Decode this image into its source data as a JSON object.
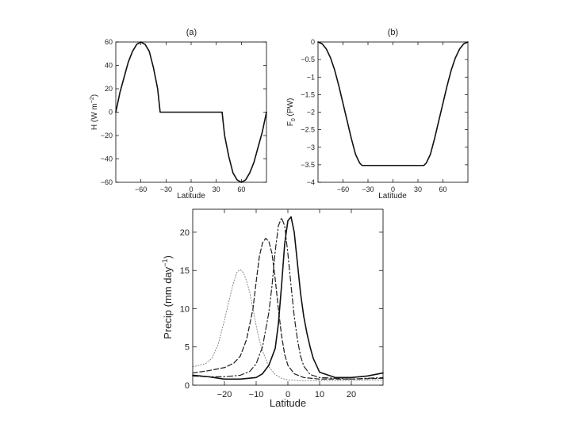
{
  "chart_data": [
    {
      "type": "line",
      "title": "(a)",
      "xlabel": "Latitude",
      "ylabel": "H (W m",
      "ylabel_sup": "−2",
      "ylabel_close": ")",
      "xlim": [
        -90,
        90
      ],
      "ylim": [
        -60,
        60
      ],
      "xticks": [
        -60,
        -30,
        0,
        30,
        60
      ],
      "yticks": [
        -60,
        -40,
        -20,
        0,
        20,
        40,
        60
      ],
      "grid": false,
      "series": [
        {
          "style": "solid",
          "x": [
            -90,
            -85,
            -80,
            -75,
            -70,
            -65,
            -60,
            -55,
            -50,
            -45,
            -40,
            -37,
            -30,
            -20,
            -10,
            0,
            10,
            20,
            30,
            37,
            40,
            45,
            50,
            55,
            60,
            65,
            70,
            75,
            80,
            85,
            90
          ],
          "y": [
            0,
            17,
            30,
            43,
            52,
            58,
            60,
            58,
            52,
            38,
            20,
            0,
            0,
            0,
            0,
            0,
            0,
            0,
            0,
            0,
            -20,
            -38,
            -52,
            -58,
            -60,
            -58,
            -52,
            -43,
            -30,
            -17,
            0
          ]
        }
      ]
    },
    {
      "type": "line",
      "title": "(b)",
      "xlabel": "Latitude",
      "ylabel": "F",
      "ylabel_sub": "0",
      "ylabel_rest": " (PW)",
      "xlim": [
        -90,
        90
      ],
      "ylim": [
        -4,
        0
      ],
      "xticks": [
        -60,
        -30,
        0,
        30,
        60
      ],
      "yticks": [
        0,
        -0.5,
        -1,
        -1.5,
        -2,
        -2.5,
        -3,
        -3.5,
        -4
      ],
      "grid": false,
      "series": [
        {
          "style": "solid",
          "x": [
            -90,
            -85,
            -80,
            -75,
            -70,
            -65,
            -60,
            -55,
            -50,
            -45,
            -40,
            -37,
            -30,
            -20,
            -10,
            0,
            10,
            20,
            30,
            37,
            40,
            45,
            50,
            55,
            60,
            65,
            70,
            75,
            80,
            85,
            90
          ],
          "y": [
            0,
            -0.05,
            -0.2,
            -0.45,
            -0.8,
            -1.25,
            -1.75,
            -2.25,
            -2.75,
            -3.2,
            -3.45,
            -3.52,
            -3.52,
            -3.52,
            -3.52,
            -3.52,
            -3.52,
            -3.52,
            -3.52,
            -3.52,
            -3.45,
            -3.2,
            -2.75,
            -2.25,
            -1.75,
            -1.25,
            -0.8,
            -0.45,
            -0.2,
            -0.05,
            0
          ]
        }
      ]
    },
    {
      "type": "line",
      "title": "",
      "xlabel": "Latitude",
      "ylabel": "Precip (mm day",
      "ylabel_sup": "−1",
      "ylabel_close": ")",
      "xlim": [
        -30,
        30
      ],
      "ylim": [
        0,
        23
      ],
      "xticks": [
        -20,
        -10,
        0,
        10,
        20
      ],
      "yticks": [
        0,
        5,
        10,
        15,
        20
      ],
      "grid": false,
      "series": [
        {
          "style": "dotted",
          "x": [
            -30,
            -26,
            -24,
            -22,
            -20,
            -18,
            -17,
            -16,
            -15,
            -14,
            -13,
            -12,
            -11,
            -10,
            -9,
            -8,
            -6,
            -4,
            -2,
            0,
            4,
            10,
            20,
            30
          ],
          "y": [
            2.4,
            2.8,
            3.5,
            5.3,
            8.5,
            12.0,
            13.6,
            14.8,
            15.1,
            14.7,
            13.6,
            12.1,
            10.0,
            7.8,
            5.9,
            4.5,
            2.4,
            1.4,
            0.9,
            0.7,
            0.6,
            0.6,
            0.6,
            0.7
          ]
        },
        {
          "style": "dashed",
          "x": [
            -30,
            -25,
            -20,
            -17,
            -15,
            -13,
            -11,
            -10,
            -9,
            -8,
            -7,
            -6,
            -5,
            -4,
            -3,
            -2,
            -1,
            0,
            2,
            5,
            10,
            20,
            30
          ],
          "y": [
            1.6,
            1.9,
            2.3,
            2.9,
            3.8,
            6.0,
            10.0,
            13.5,
            16.8,
            18.6,
            19.2,
            18.8,
            17.2,
            13.9,
            10.0,
            6.5,
            4.0,
            2.6,
            1.5,
            1.0,
            0.8,
            0.8,
            0.9
          ]
        },
        {
          "style": "dashdot",
          "x": [
            -30,
            -25,
            -20,
            -15,
            -12,
            -10,
            -8,
            -6,
            -5,
            -4,
            -3,
            -2,
            -1,
            0,
            1,
            2,
            3,
            4,
            5,
            7,
            10,
            20,
            30
          ],
          "y": [
            1.2,
            1.1,
            1.1,
            1.3,
            1.8,
            2.8,
            5.0,
            9.5,
            13.0,
            17.5,
            20.8,
            21.9,
            20.8,
            17.2,
            13.0,
            9.0,
            6.0,
            3.8,
            2.5,
            1.4,
            1.0,
            0.8,
            1.0
          ]
        },
        {
          "style": "solid",
          "x": [
            -30,
            -25,
            -20,
            -15,
            -10,
            -8,
            -6,
            -4,
            -3,
            -2,
            -1,
            0,
            1,
            2,
            3,
            4,
            5,
            6,
            7,
            8,
            10,
            15,
            20,
            25,
            30
          ],
          "y": [
            1.3,
            1.1,
            0.8,
            0.8,
            1.0,
            1.5,
            2.6,
            4.8,
            8.0,
            13.0,
            18.5,
            21.5,
            22.0,
            20.0,
            16.0,
            12.0,
            9.0,
            6.8,
            5.0,
            3.5,
            1.7,
            1.0,
            1.0,
            1.2,
            1.6
          ]
        }
      ]
    }
  ]
}
